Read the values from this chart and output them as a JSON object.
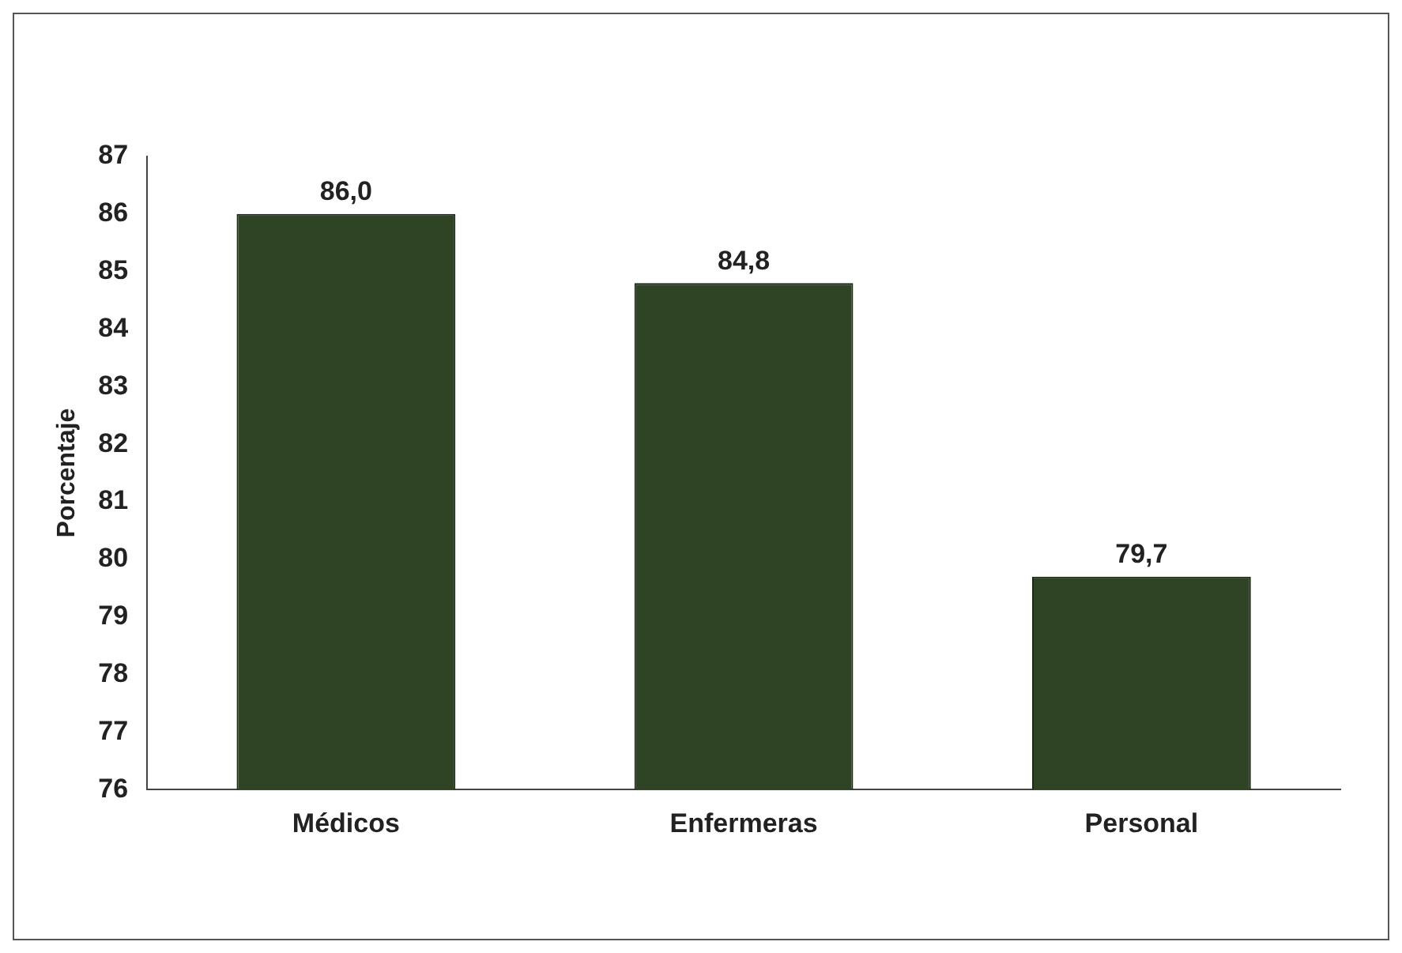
{
  "chart_data": {
    "type": "bar",
    "ylabel": "Porcentaje",
    "categories": [
      "Médicos",
      "Enfermeras",
      "Personal"
    ],
    "values": [
      86.0,
      84.8,
      79.7
    ],
    "value_labels": [
      "86,0",
      "84,8",
      "79,7"
    ],
    "color": "#2e4424",
    "ylim": [
      76,
      87
    ],
    "yticks": [
      76,
      77,
      78,
      79,
      80,
      81,
      82,
      83,
      84,
      85,
      86,
      87
    ],
    "grid": false,
    "legend": false
  }
}
